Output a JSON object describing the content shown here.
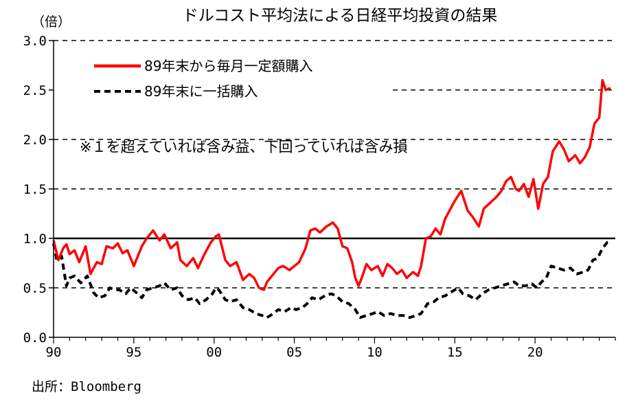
{
  "chart_data": {
    "type": "line",
    "title": "ドルコスト平均法による日経平均投資の結果",
    "ylabel": "（倍）",
    "xlabel": "",
    "source": "出所：Bloomberg",
    "note": "※１を超えていれば含み益、下回っていれば含み損",
    "ylim": [
      0.0,
      3.0
    ],
    "xlim": [
      1990,
      2025
    ],
    "y_ticks": [
      0.0,
      0.5,
      1.0,
      1.5,
      2.0,
      2.5,
      3.0
    ],
    "y_tick_labels": [
      "0.0",
      "0.5",
      "1.0",
      "1.5",
      "2.0",
      "2.5",
      "3.0"
    ],
    "x_ticks": [
      1990,
      1995,
      2000,
      2005,
      2010,
      2015,
      2020
    ],
    "x_tick_labels": [
      "90",
      "95",
      "00",
      "05",
      "10",
      "15",
      "20"
    ],
    "grid": "dashed horizontal",
    "reference_line": 1.0,
    "legend_position": "top-left",
    "series": [
      {
        "name": "89年末から毎月一定額購入",
        "color": "#ff0000",
        "style": "solid",
        "x": [
          1990.0,
          1990.3,
          1990.6,
          1990.8,
          1991.0,
          1991.3,
          1991.6,
          1992.0,
          1992.3,
          1992.7,
          1993.0,
          1993.3,
          1993.7,
          1994.0,
          1994.3,
          1994.6,
          1995.0,
          1995.5,
          1995.8,
          1996.2,
          1996.6,
          1996.9,
          1997.3,
          1997.7,
          1997.9,
          1998.3,
          1998.7,
          1999.0,
          1999.4,
          1999.8,
          2000.1,
          2000.3,
          2000.7,
          2001.0,
          2001.4,
          2001.8,
          2002.2,
          2002.5,
          2002.8,
          2003.1,
          2003.3,
          2003.7,
          2004.0,
          2004.3,
          2004.7,
          2005.0,
          2005.3,
          2005.7,
          2006.0,
          2006.3,
          2006.6,
          2007.0,
          2007.4,
          2007.7,
          2008.0,
          2008.3,
          2008.6,
          2008.8,
          2009.0,
          2009.2,
          2009.5,
          2009.8,
          2010.2,
          2010.5,
          2010.8,
          2011.1,
          2011.4,
          2011.7,
          2012.0,
          2012.4,
          2012.7,
          2012.9,
          2013.2,
          2013.5,
          2013.8,
          2014.1,
          2014.4,
          2014.8,
          2015.0,
          2015.4,
          2015.8,
          2016.1,
          2016.5,
          2016.8,
          2017.2,
          2017.6,
          2017.9,
          2018.2,
          2018.5,
          2018.8,
          2019.0,
          2019.3,
          2019.6,
          2019.9,
          2020.2,
          2020.5,
          2020.8,
          2021.1,
          2021.5,
          2021.8,
          2022.1,
          2022.5,
          2022.8,
          2023.1,
          2023.4,
          2023.7,
          2024.0,
          2024.2,
          2024.4,
          2024.7
        ],
        "y": [
          0.98,
          0.78,
          0.9,
          0.94,
          0.84,
          0.88,
          0.76,
          0.92,
          0.64,
          0.76,
          0.74,
          0.92,
          0.9,
          0.95,
          0.85,
          0.88,
          0.72,
          0.92,
          1.0,
          1.08,
          0.98,
          1.04,
          0.9,
          0.96,
          0.78,
          0.72,
          0.8,
          0.7,
          0.84,
          0.96,
          1.02,
          1.04,
          0.78,
          0.72,
          0.76,
          0.58,
          0.64,
          0.6,
          0.5,
          0.48,
          0.56,
          0.64,
          0.7,
          0.72,
          0.68,
          0.72,
          0.76,
          0.9,
          1.08,
          1.1,
          1.06,
          1.12,
          1.16,
          1.1,
          0.92,
          0.9,
          0.76,
          0.6,
          0.52,
          0.6,
          0.74,
          0.68,
          0.72,
          0.62,
          0.74,
          0.7,
          0.64,
          0.68,
          0.6,
          0.66,
          0.62,
          0.72,
          1.0,
          1.02,
          1.1,
          1.04,
          1.2,
          1.32,
          1.38,
          1.48,
          1.28,
          1.22,
          1.12,
          1.3,
          1.36,
          1.42,
          1.48,
          1.58,
          1.62,
          1.5,
          1.48,
          1.55,
          1.42,
          1.6,
          1.3,
          1.55,
          1.62,
          1.88,
          1.98,
          1.9,
          1.78,
          1.84,
          1.76,
          1.82,
          1.92,
          2.16,
          2.22,
          2.6,
          2.5,
          2.52
        ]
      },
      {
        "name": "89年末に一括購入",
        "color": "#000000",
        "style": "dashed",
        "x": [
          1990.0,
          1990.2,
          1990.5,
          1990.8,
          1991.0,
          1991.3,
          1991.7,
          1992.1,
          1992.5,
          1992.8,
          1993.2,
          1993.5,
          1993.8,
          1994.1,
          1994.5,
          1994.8,
          1995.1,
          1995.5,
          1995.8,
          1996.2,
          1996.6,
          1996.9,
          1997.3,
          1997.7,
          1998.0,
          1998.4,
          1998.8,
          1999.1,
          1999.5,
          1999.9,
          2000.1,
          2000.3,
          2000.7,
          2001.0,
          2001.4,
          2001.8,
          2002.2,
          2002.6,
          2003.0,
          2003.3,
          2003.7,
          2004.0,
          2004.4,
          2004.8,
          2005.1,
          2005.5,
          2005.8,
          2006.1,
          2006.5,
          2006.9,
          2007.3,
          2007.6,
          2008.0,
          2008.4,
          2008.8,
          2009.1,
          2009.5,
          2009.9,
          2010.2,
          2010.6,
          2011.0,
          2011.4,
          2011.8,
          2012.2,
          2012.6,
          2012.9,
          2013.3,
          2013.7,
          2014.0,
          2014.4,
          2014.8,
          2015.2,
          2015.5,
          2015.9,
          2016.3,
          2016.7,
          2017.1,
          2017.5,
          2017.9,
          2018.3,
          2018.7,
          2019.0,
          2019.4,
          2019.8,
          2020.1,
          2020.4,
          2020.7,
          2021.0,
          2021.4,
          2021.8,
          2022.2,
          2022.6,
          2023.0,
          2023.3,
          2023.6,
          2023.9,
          2024.2,
          2024.5,
          2024.7
        ],
        "y": [
          0.95,
          0.78,
          0.82,
          0.52,
          0.6,
          0.62,
          0.55,
          0.62,
          0.45,
          0.4,
          0.42,
          0.5,
          0.48,
          0.48,
          0.44,
          0.5,
          0.46,
          0.4,
          0.48,
          0.5,
          0.52,
          0.55,
          0.48,
          0.5,
          0.42,
          0.38,
          0.4,
          0.34,
          0.38,
          0.44,
          0.5,
          0.48,
          0.38,
          0.36,
          0.38,
          0.3,
          0.28,
          0.24,
          0.22,
          0.2,
          0.24,
          0.28,
          0.26,
          0.3,
          0.28,
          0.3,
          0.34,
          0.4,
          0.38,
          0.42,
          0.44,
          0.42,
          0.36,
          0.34,
          0.28,
          0.2,
          0.22,
          0.24,
          0.26,
          0.22,
          0.24,
          0.22,
          0.22,
          0.2,
          0.22,
          0.24,
          0.34,
          0.36,
          0.4,
          0.42,
          0.46,
          0.5,
          0.44,
          0.42,
          0.38,
          0.44,
          0.48,
          0.5,
          0.52,
          0.54,
          0.56,
          0.52,
          0.52,
          0.54,
          0.5,
          0.56,
          0.6,
          0.72,
          0.7,
          0.68,
          0.7,
          0.64,
          0.66,
          0.68,
          0.78,
          0.8,
          0.9,
          0.96,
          0.97
        ]
      }
    ]
  }
}
